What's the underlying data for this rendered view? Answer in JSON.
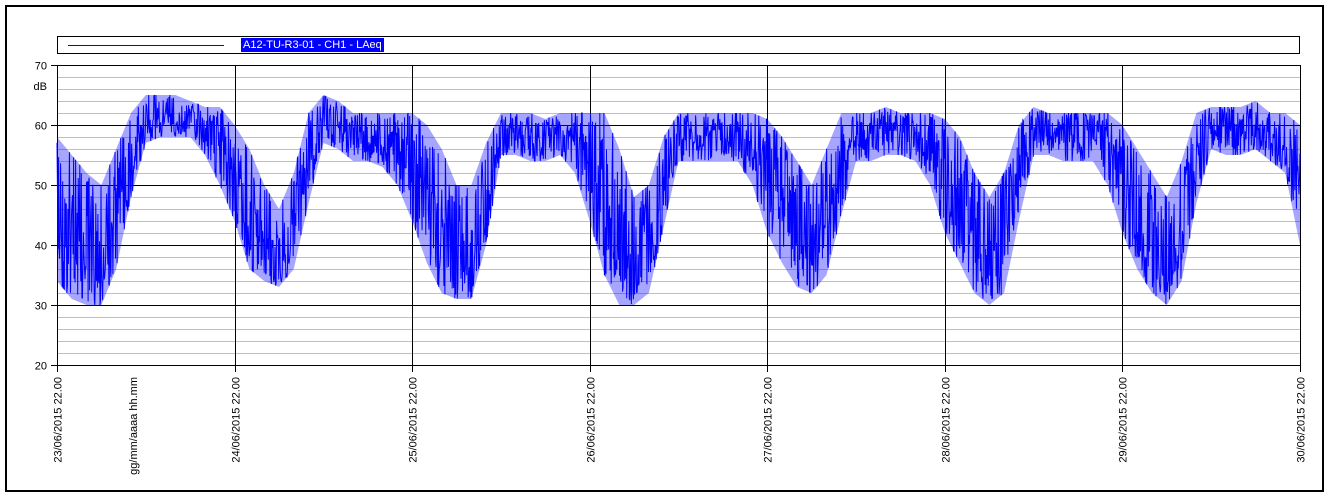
{
  "legend": {
    "series_name": "A12-TU-R3-01 - CH1 - LAeq"
  },
  "colors": {
    "series": "#0000ff",
    "legend_bg": "#0000ff",
    "legend_text": "#ffffff",
    "grid_major": "#000000",
    "grid_minor": "#c0c0c0"
  },
  "chart_data": {
    "type": "line",
    "ylabel": "dB",
    "xaxis_format_label": "gg/mm/aaaa hh.mm",
    "ylim": [
      20,
      70
    ],
    "yticks": [
      "20",
      "30",
      "40",
      "50",
      "60",
      "70"
    ],
    "xlim": [
      "23/06/2015 22.00",
      "30/06/2015 22.00"
    ],
    "xticks": [
      "23/06/2015 22.00",
      "24/06/2015 22.00",
      "25/06/2015 22.00",
      "26/06/2015 22.00",
      "27/06/2015 22.00",
      "28/06/2015 22.00",
      "29/06/2015 22.00",
      "30/06/2015 22.00"
    ],
    "grid": true,
    "legend_position": "top",
    "series": [
      {
        "name": "A12-TU-R3-01 - CH1 - LAeq",
        "x": [
          "23/06 22.00",
          "24/06 00.00",
          "24/06 02.00",
          "24/06 04.00",
          "24/06 06.00",
          "24/06 08.00",
          "24/06 10.00",
          "24/06 12.00",
          "24/06 14.00",
          "24/06 16.00",
          "24/06 18.00",
          "24/06 20.00",
          "24/06 22.00",
          "25/06 00.00",
          "25/06 02.00",
          "25/06 04.00",
          "25/06 06.00",
          "25/06 08.00",
          "25/06 10.00",
          "25/06 12.00",
          "25/06 14.00",
          "25/06 16.00",
          "25/06 18.00",
          "25/06 20.00",
          "25/06 22.00",
          "26/06 00.00",
          "26/06 02.00",
          "26/06 04.00",
          "26/06 06.00",
          "26/06 08.00",
          "26/06 10.00",
          "26/06 12.00",
          "26/06 14.00",
          "26/06 16.00",
          "26/06 18.00",
          "26/06 20.00",
          "26/06 22.00",
          "27/06 00.00",
          "27/06 02.00",
          "27/06 04.00",
          "27/06 06.00",
          "27/06 08.00",
          "27/06 10.00",
          "27/06 12.00",
          "27/06 14.00",
          "27/06 16.00",
          "27/06 18.00",
          "27/06 20.00",
          "27/06 22.00",
          "28/06 00.00",
          "28/06 02.00",
          "28/06 04.00",
          "28/06 06.00",
          "28/06 08.00",
          "28/06 10.00",
          "28/06 12.00",
          "28/06 14.00",
          "28/06 16.00",
          "28/06 18.00",
          "28/06 20.00",
          "28/06 22.00",
          "29/06 00.00",
          "29/06 02.00",
          "29/06 04.00",
          "29/06 06.00",
          "29/06 08.00",
          "29/06 10.00",
          "29/06 12.00",
          "29/06 14.00",
          "29/06 16.00",
          "29/06 18.00",
          "29/06 20.00",
          "29/06 22.00",
          "30/06 00.00",
          "30/06 02.00",
          "30/06 04.00",
          "30/06 06.00",
          "30/06 08.00",
          "30/06 10.00",
          "30/06 12.00",
          "30/06 14.00",
          "30/06 16.00",
          "30/06 18.00",
          "30/06 20.00",
          "30/06 22.00"
        ],
        "y": [
          46,
          41,
          38,
          36,
          45,
          55,
          61,
          62,
          61,
          62,
          61,
          58,
          52,
          44,
          38,
          35,
          42,
          55,
          61,
          60,
          58,
          58,
          57,
          56,
          55,
          48,
          42,
          38,
          38,
          48,
          59,
          59,
          58,
          58,
          59,
          58,
          56,
          45,
          37,
          33,
          40,
          50,
          58,
          58,
          58,
          58,
          58,
          57,
          55,
          47,
          40,
          38,
          45,
          54,
          58,
          58,
          59,
          59,
          58,
          57,
          55,
          45,
          40,
          35,
          40,
          52,
          59,
          59,
          58,
          58,
          58,
          56,
          53,
          44,
          40,
          35,
          42,
          55,
          60,
          59,
          59,
          60,
          58,
          57,
          52
        ],
        "range_low": [
          34,
          31,
          30,
          30,
          36,
          48,
          57,
          58,
          58,
          58,
          55,
          50,
          44,
          36,
          34,
          33,
          36,
          47,
          57,
          56,
          54,
          54,
          53,
          50,
          44,
          37,
          32,
          31,
          31,
          40,
          55,
          55,
          54,
          54,
          55,
          52,
          44,
          35,
          30,
          30,
          32,
          43,
          54,
          54,
          54,
          54,
          54,
          50,
          42,
          37,
          33,
          32,
          35,
          45,
          54,
          54,
          55,
          55,
          54,
          50,
          42,
          37,
          32,
          30,
          32,
          44,
          55,
          55,
          54,
          54,
          54,
          50,
          42,
          36,
          32,
          30,
          34,
          47,
          56,
          55,
          55,
          56,
          54,
          52,
          40
        ],
        "range_high": [
          58,
          55,
          52,
          50,
          56,
          62,
          65,
          65,
          65,
          64,
          63,
          63,
          60,
          56,
          50,
          46,
          52,
          62,
          65,
          64,
          62,
          62,
          62,
          62,
          62,
          60,
          56,
          50,
          50,
          57,
          62,
          62,
          62,
          61,
          62,
          62,
          62,
          62,
          56,
          48,
          50,
          58,
          62,
          62,
          62,
          62,
          62,
          62,
          61,
          58,
          54,
          50,
          56,
          62,
          62,
          62,
          63,
          62,
          62,
          62,
          61,
          58,
          52,
          48,
          52,
          60,
          63,
          62,
          62,
          62,
          62,
          62,
          60,
          56,
          52,
          48,
          54,
          62,
          63,
          63,
          63,
          64,
          62,
          62,
          60
        ]
      }
    ]
  }
}
